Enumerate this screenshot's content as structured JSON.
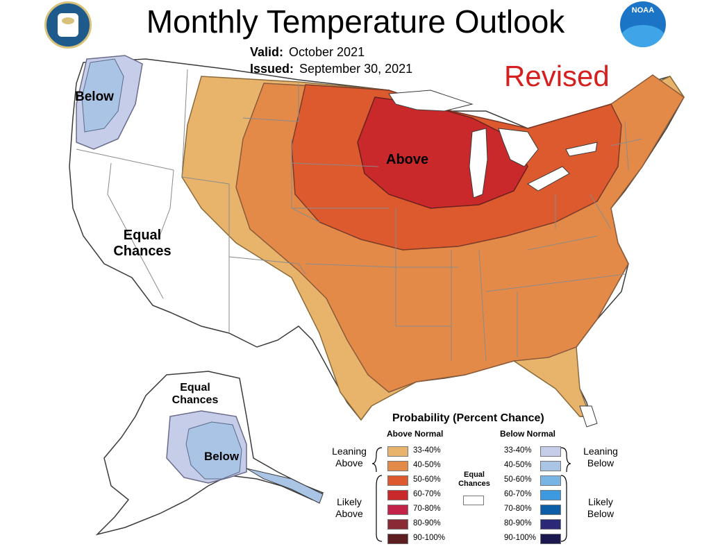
{
  "header": {
    "title": "Monthly Temperature Outlook",
    "valid_label": "Valid:",
    "valid_value": "October 2021",
    "issued_label": "Issued:",
    "issued_value": "September 30, 2021",
    "status": "Revised"
  },
  "logos": {
    "left": "department-of-commerce-seal",
    "right": "noaa-logo",
    "right_text": "NOAA"
  },
  "map_labels": {
    "northwest": "Below",
    "west": [
      "Equal",
      "Chances"
    ],
    "great_lakes": "Above",
    "alaska_top": [
      "Equal",
      "Chances"
    ],
    "alaska_center": "Below"
  },
  "legend": {
    "title": "Probability (Percent Chance)",
    "above_header": "Above Normal",
    "below_header": "Below Normal",
    "equal_label": [
      "Equal",
      "Chances"
    ],
    "leaning_above": [
      "Leaning",
      "Above"
    ],
    "likely_above": [
      "Likely",
      "Above"
    ],
    "leaning_below": [
      "Leaning",
      "Below"
    ],
    "likely_below": [
      "Likely",
      "Below"
    ],
    "above": [
      {
        "range": "33-40%",
        "color": "#e8b46c"
      },
      {
        "range": "40-50%",
        "color": "#e48a48"
      },
      {
        "range": "50-60%",
        "color": "#dc5a2e"
      },
      {
        "range": "60-70%",
        "color": "#c9292b"
      },
      {
        "range": "70-80%",
        "color": "#c32349"
      },
      {
        "range": "80-90%",
        "color": "#8a2a35"
      },
      {
        "range": "90-100%",
        "color": "#5c1e20"
      }
    ],
    "below": [
      {
        "range": "33-40%",
        "color": "#c5cde8"
      },
      {
        "range": "40-50%",
        "color": "#a9c4e4"
      },
      {
        "range": "50-60%",
        "color": "#78b4e4"
      },
      {
        "range": "60-70%",
        "color": "#3d9ae0"
      },
      {
        "range": "70-80%",
        "color": "#0c5ea6"
      },
      {
        "range": "80-90%",
        "color": "#2c2878"
      },
      {
        "range": "90-100%",
        "color": "#1b1850"
      }
    ],
    "equal_color": "#ffffff"
  },
  "colors": {
    "state_border": "#8a8a8a",
    "coast": "#3a3a3a",
    "lakes": "#ffffff"
  }
}
